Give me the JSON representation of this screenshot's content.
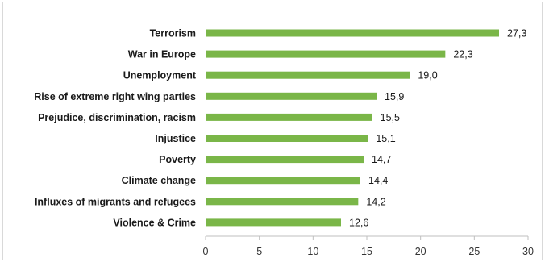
{
  "chart_data": {
    "type": "bar",
    "orientation": "horizontal",
    "categories": [
      "Terrorism",
      "War in Europe",
      "Unemployment",
      "Rise of extreme right wing parties",
      "Prejudice, discrimination, racism",
      "Injustice",
      "Poverty",
      "Climate change",
      "Influxes of migrants and refugees",
      "Violence & Crime"
    ],
    "values": [
      27.3,
      22.3,
      19.0,
      15.9,
      15.5,
      15.1,
      14.7,
      14.4,
      14.2,
      12.6
    ],
    "value_labels": [
      "27,3",
      "22,3",
      "19,0",
      "15,9",
      "15,5",
      "15,1",
      "14,7",
      "14,4",
      "14,2",
      "12,6"
    ],
    "title": "",
    "xlabel": "",
    "ylabel": "",
    "xlim": [
      0,
      30
    ],
    "x_ticks": [
      0,
      5,
      10,
      15,
      20,
      25,
      30
    ],
    "grid": false,
    "legend": "none",
    "bar_color": "#7ab648"
  }
}
